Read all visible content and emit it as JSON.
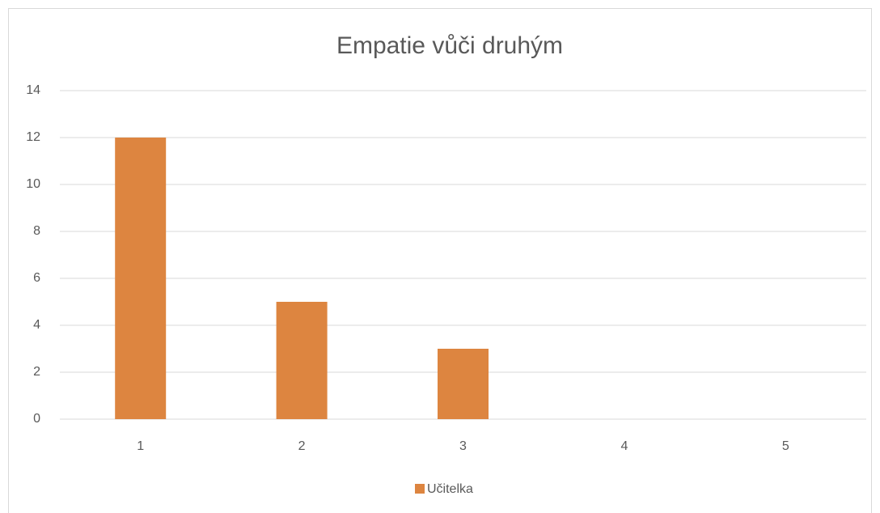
{
  "chart_data": {
    "type": "bar",
    "title": "Empatie vůči druhým",
    "categories": [
      "1",
      "2",
      "3",
      "4",
      "5"
    ],
    "series": [
      {
        "name": "Učitelka",
        "color": "#dd8540",
        "values": [
          12,
          5,
          3,
          0,
          0
        ]
      }
    ],
    "ylim": [
      0,
      14
    ],
    "yticks": [
      0,
      2,
      4,
      6,
      8,
      10,
      12,
      14
    ],
    "grid": true,
    "legend": "bottom"
  }
}
